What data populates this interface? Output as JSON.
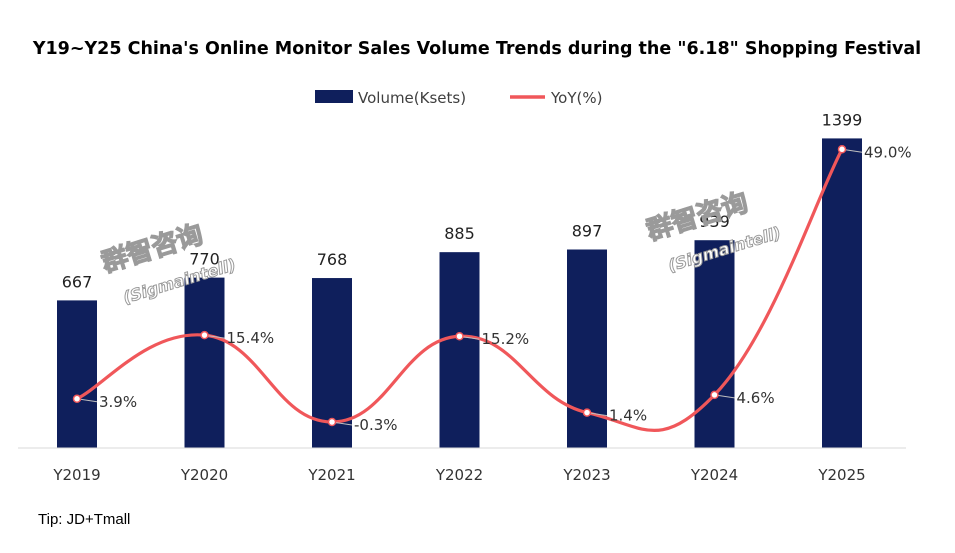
{
  "chart_data": {
    "type": "bar",
    "title": "Y19~Y25 China's Online Monitor Sales Volume Trends during the \"6.18\" Shopping Festival",
    "categories": [
      "Y2019",
      "Y2020",
      "Y2021",
      "Y2022",
      "Y2023",
      "Y2024",
      "Y2025"
    ],
    "series": [
      {
        "name": "Volume(Ksets)",
        "type": "bar",
        "color": "#0f1f5c",
        "values": [
          667,
          770,
          768,
          885,
          897,
          939,
          1399
        ],
        "labels": [
          "667",
          "770",
          "768",
          "885",
          "897",
          "939",
          "1399"
        ]
      },
      {
        "name": "YoY(%)",
        "type": "line",
        "color": "#f0575a",
        "values": [
          3.9,
          15.4,
          -0.3,
          15.2,
          1.4,
          4.6,
          49.0
        ],
        "labels": [
          "3.9%",
          "15.4%",
          "-0.3%",
          "15.2%",
          "1.4%",
          "4.6%",
          "49.0%"
        ]
      }
    ],
    "legend_position": "top-center",
    "grid": false,
    "ylim_volume": [
      0,
      1550
    ],
    "ylim_yoy": [
      -5,
      57
    ]
  },
  "note": "Tip: JD+Tmall",
  "watermarks": [
    {
      "cn": "群智咨询",
      "en": "(Sigmaintell)"
    },
    {
      "cn": "群智咨询",
      "en": "(Sigmaintell)"
    }
  ]
}
